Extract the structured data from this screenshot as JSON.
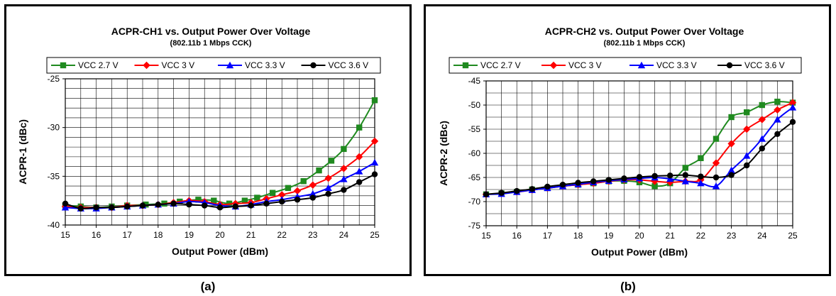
{
  "chart_data": [
    {
      "type": "line",
      "title": "ACPR-CH1 vs. Output Power Over Voltage",
      "subtitle": "(802.11b 1 Mbps CCK)",
      "xlabel": "Output Power (dBm)",
      "ylabel": "ACPR-1 (dBc)",
      "xlim": [
        15,
        25
      ],
      "ylim": [
        -40,
        -25
      ],
      "xticks": [
        15,
        16,
        17,
        18,
        19,
        20,
        21,
        22,
        23,
        24,
        25
      ],
      "yticks": [
        -40,
        -35,
        -30,
        -25
      ],
      "grid": true,
      "legend_position": "top",
      "series": [
        {
          "name": "VCC 2.7 V",
          "color": "#1f8a1f",
          "marker": "square",
          "x": [
            15.0,
            15.5,
            16.0,
            16.5,
            17.0,
            17.6,
            18.2,
            18.7,
            19.3,
            19.8,
            20.3,
            20.8,
            21.2,
            21.7,
            22.2,
            22.7,
            23.2,
            23.6,
            24.0,
            24.5,
            25.0
          ],
          "y": [
            -38.0,
            -38.1,
            -38.2,
            -38.1,
            -38.0,
            -37.9,
            -37.8,
            -37.6,
            -37.4,
            -37.5,
            -37.8,
            -37.5,
            -37.2,
            -36.7,
            -36.2,
            -35.5,
            -34.4,
            -33.4,
            -32.2,
            -30.0,
            -27.2
          ]
        },
        {
          "name": "VCC 3 V",
          "color": "#ff0000",
          "marker": "diamond",
          "x": [
            15.0,
            15.5,
            16.0,
            16.5,
            17.0,
            17.5,
            18.0,
            18.5,
            19.0,
            19.5,
            20.0,
            20.5,
            21.0,
            21.5,
            22.0,
            22.5,
            23.0,
            23.5,
            24.0,
            24.5,
            25.0
          ],
          "y": [
            -38.1,
            -38.2,
            -38.2,
            -38.2,
            -38.0,
            -38.0,
            -37.9,
            -37.7,
            -37.5,
            -37.6,
            -37.9,
            -37.8,
            -37.7,
            -37.3,
            -36.9,
            -36.5,
            -35.9,
            -35.2,
            -34.2,
            -33.0,
            -31.4
          ]
        },
        {
          "name": "VCC 3.3 V",
          "color": "#0000ff",
          "marker": "triangle",
          "x": [
            15.0,
            15.5,
            16.0,
            16.5,
            17.0,
            17.5,
            18.0,
            18.5,
            19.0,
            19.5,
            20.0,
            20.5,
            21.0,
            21.5,
            22.0,
            22.5,
            23.0,
            23.5,
            24.0,
            24.5,
            25.0
          ],
          "y": [
            -38.2,
            -38.3,
            -38.3,
            -38.2,
            -38.1,
            -38.0,
            -37.9,
            -37.8,
            -37.6,
            -37.7,
            -38.0,
            -38.1,
            -37.9,
            -37.6,
            -37.4,
            -37.1,
            -36.8,
            -36.2,
            -35.3,
            -34.5,
            -33.6
          ]
        },
        {
          "name": "VCC 3.6 V",
          "color": "#000000",
          "marker": "circle",
          "x": [
            15.0,
            15.5,
            16.0,
            16.5,
            17.0,
            17.5,
            18.0,
            18.5,
            19.0,
            19.5,
            20.0,
            20.5,
            21.0,
            21.5,
            22.0,
            22.5,
            23.0,
            23.5,
            24.0,
            24.5,
            25.0
          ],
          "y": [
            -37.8,
            -38.3,
            -38.2,
            -38.2,
            -38.1,
            -38.0,
            -37.9,
            -37.8,
            -37.9,
            -38.0,
            -38.2,
            -38.1,
            -38.0,
            -37.8,
            -37.6,
            -37.4,
            -37.2,
            -36.8,
            -36.4,
            -35.6,
            -34.8
          ]
        }
      ]
    },
    {
      "type": "line",
      "title": "ACPR-CH2 vs. Output Power Over Voltage",
      "subtitle": "(802.11b 1 Mbps CCK)",
      "xlabel": "Output Power (dBm)",
      "ylabel": "ACPR-2 (dBc)",
      "xlim": [
        15,
        25
      ],
      "ylim": [
        -75,
        -45
      ],
      "xticks": [
        15,
        16,
        17,
        18,
        19,
        20,
        21,
        22,
        23,
        24,
        25
      ],
      "yticks": [
        -75,
        -70,
        -65,
        -60,
        -55,
        -50,
        -45
      ],
      "grid": true,
      "legend_position": "top",
      "series": [
        {
          "name": "VCC 2.7 V",
          "color": "#1f8a1f",
          "marker": "square",
          "x": [
            15.0,
            15.5,
            16.0,
            16.5,
            17.0,
            17.5,
            18.0,
            18.5,
            19.0,
            19.5,
            20.0,
            20.5,
            21.0,
            21.5,
            22.0,
            22.5,
            23.0,
            23.5,
            24.0,
            24.5,
            25.0
          ],
          "y": [
            -68.5,
            -68.3,
            -68.0,
            -67.5,
            -67.2,
            -66.8,
            -66.5,
            -66.2,
            -65.8,
            -65.7,
            -66.0,
            -66.8,
            -66.2,
            -63.0,
            -61.0,
            -57.0,
            -52.5,
            -51.5,
            -50.0,
            -49.3,
            -49.5
          ]
        },
        {
          "name": "VCC 3 V",
          "color": "#ff0000",
          "marker": "diamond",
          "x": [
            15.0,
            15.5,
            16.0,
            16.5,
            17.0,
            17.5,
            18.0,
            18.5,
            19.0,
            19.5,
            20.0,
            20.5,
            21.0,
            21.5,
            22.0,
            22.5,
            23.0,
            23.5,
            24.0,
            24.5,
            25.0
          ],
          "y": [
            -68.5,
            -68.3,
            -68.0,
            -67.6,
            -67.2,
            -66.8,
            -66.5,
            -66.2,
            -65.8,
            -65.5,
            -65.5,
            -65.8,
            -66.0,
            -65.8,
            -65.5,
            -62.0,
            -58.0,
            -55.0,
            -53.0,
            -51.0,
            -49.5
          ]
        },
        {
          "name": "VCC 3.3 V",
          "color": "#0000ff",
          "marker": "triangle",
          "x": [
            15.0,
            15.5,
            16.0,
            16.5,
            17.0,
            17.5,
            18.0,
            18.5,
            19.0,
            19.5,
            20.0,
            20.5,
            21.0,
            21.5,
            22.0,
            22.5,
            23.0,
            23.5,
            24.0,
            24.5,
            25.0
          ],
          "y": [
            -68.5,
            -68.4,
            -68.0,
            -67.6,
            -67.2,
            -66.8,
            -66.4,
            -66.0,
            -65.7,
            -65.4,
            -65.2,
            -65.0,
            -65.3,
            -65.8,
            -66.2,
            -66.8,
            -63.5,
            -60.5,
            -57.0,
            -53.0,
            -50.5
          ]
        },
        {
          "name": "VCC 3.6 V",
          "color": "#000000",
          "marker": "circle",
          "x": [
            15.0,
            15.5,
            16.0,
            16.5,
            17.0,
            17.5,
            18.0,
            18.5,
            19.0,
            19.5,
            20.0,
            20.5,
            21.0,
            21.5,
            22.0,
            22.5,
            23.0,
            23.5,
            24.0,
            24.5,
            25.0
          ],
          "y": [
            -68.5,
            -68.2,
            -67.8,
            -67.4,
            -66.9,
            -66.5,
            -66.1,
            -65.8,
            -65.5,
            -65.2,
            -64.9,
            -64.7,
            -64.6,
            -64.5,
            -64.8,
            -65.0,
            -64.5,
            -62.5,
            -59.0,
            -56.0,
            -53.5
          ]
        }
      ]
    }
  ],
  "captions": [
    "(a)",
    "(b)"
  ]
}
